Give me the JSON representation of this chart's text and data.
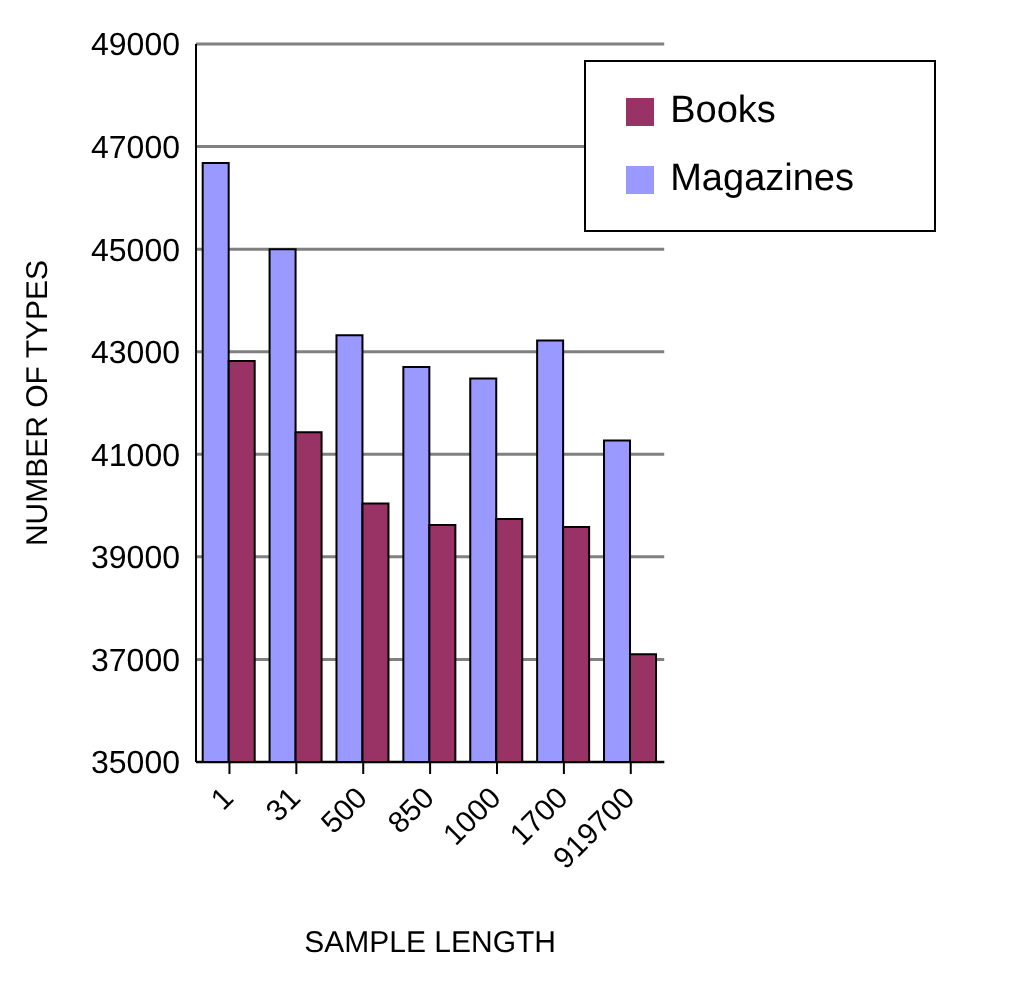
{
  "chart_data": {
    "type": "bar",
    "xlabel": "SAMPLE LENGTH",
    "ylabel": "NUMBER OF TYPES",
    "categories": [
      "1",
      "31",
      "500",
      "850",
      "1000",
      "1700",
      "919700"
    ],
    "series": [
      {
        "name": "Magazines",
        "color": "#9999ff",
        "values": [
          46680,
          45000,
          43320,
          42700,
          42480,
          43220,
          41270
        ]
      },
      {
        "name": "Books",
        "color": "#993366",
        "values": [
          42820,
          41430,
          40040,
          39620,
          39740,
          39580,
          37100
        ]
      }
    ],
    "ylim": [
      35000,
      49000
    ],
    "yticks": [
      35000,
      37000,
      39000,
      41000,
      43000,
      45000,
      47000,
      49000
    ],
    "grid": "y",
    "legend": "top right"
  }
}
